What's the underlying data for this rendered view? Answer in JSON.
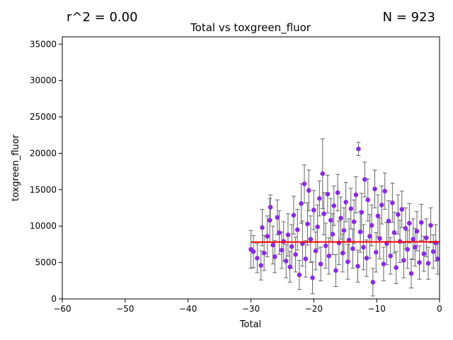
{
  "stats": {
    "r2_label": "r^2 = 0.00",
    "n_label": "N = 923"
  },
  "chart_data": {
    "type": "scatter",
    "title": "Total vs toxgreen_fluor",
    "xlabel": "Total",
    "ylabel": "toxgreen_fluor",
    "xlim": [
      -60,
      0
    ],
    "ylim": [
      0,
      36000
    ],
    "xticks": [
      -60,
      -50,
      -40,
      -30,
      -20,
      -10,
      0
    ],
    "yticks": [
      0,
      5000,
      10000,
      15000,
      20000,
      25000,
      30000,
      35000
    ],
    "xtick_labels": [
      "−60",
      "−50",
      "−40",
      "−30",
      "−20",
      "−10",
      "0"
    ],
    "ytick_labels": [
      "0",
      "5000",
      "10000",
      "15000",
      "20000",
      "25000",
      "30000",
      "35000"
    ],
    "grid": false,
    "fit_line": {
      "x": [
        -30,
        0
      ],
      "y": [
        7800,
        7850
      ],
      "color": "#ff0000"
    },
    "marker_color": "#8a2be2",
    "errorbar_color": "#666666",
    "series": [
      {
        "points": [
          [
            -30.0,
            6800,
            2600
          ],
          [
            -29.6,
            6500,
            2200
          ],
          [
            -29.0,
            5600,
            2000
          ],
          [
            -28.4,
            4600,
            2000
          ],
          [
            -28.2,
            9800,
            2500
          ],
          [
            -27.9,
            6300,
            2400
          ],
          [
            -27.4,
            8600,
            2800
          ],
          [
            -27.0,
            10800,
            3000
          ],
          [
            -26.9,
            12600,
            1700
          ],
          [
            -26.5,
            7400,
            2600
          ],
          [
            -26.2,
            5800,
            2200
          ],
          [
            -25.8,
            11200,
            2400
          ],
          [
            -25.5,
            9100,
            3000
          ],
          [
            -25.1,
            6700,
            2500
          ],
          [
            -24.8,
            7900,
            2700
          ],
          [
            -24.4,
            5200,
            2300
          ],
          [
            -24.1,
            8800,
            2900
          ],
          [
            -23.8,
            4400,
            2100
          ],
          [
            -23.5,
            7200,
            3000
          ],
          [
            -23.2,
            11500,
            2600
          ],
          [
            -22.9,
            6100,
            2400
          ],
          [
            -22.6,
            9500,
            2800
          ],
          [
            -22.3,
            3300,
            2000
          ],
          [
            -22.0,
            13100,
            2700
          ],
          [
            -21.8,
            7600,
            3100
          ],
          [
            -21.5,
            15800,
            2600
          ],
          [
            -21.3,
            5500,
            2500
          ],
          [
            -21.0,
            10300,
            2900
          ],
          [
            -20.8,
            14900,
            2800
          ],
          [
            -20.5,
            8200,
            3200
          ],
          [
            -20.2,
            2900,
            2200
          ],
          [
            -20.0,
            12200,
            2700
          ],
          [
            -19.7,
            6600,
            2600
          ],
          [
            -19.4,
            9900,
            3000
          ],
          [
            -19.1,
            13800,
            2400
          ],
          [
            -18.9,
            4800,
            2300
          ],
          [
            -18.6,
            17200,
            4800
          ],
          [
            -18.4,
            11700,
            2900
          ],
          [
            -18.1,
            7300,
            3100
          ],
          [
            -17.8,
            14400,
            2600
          ],
          [
            -17.6,
            5900,
            2500
          ],
          [
            -17.3,
            10800,
            3000
          ],
          [
            -17.0,
            8900,
            2800
          ],
          [
            -16.8,
            12800,
            2700
          ],
          [
            -16.5,
            3900,
            2200
          ],
          [
            -16.2,
            14600,
            2500
          ],
          [
            -16.0,
            7700,
            3000
          ],
          [
            -15.7,
            11100,
            2900
          ],
          [
            -15.4,
            6300,
            2600
          ],
          [
            -15.2,
            9400,
            3100
          ],
          [
            -14.9,
            13300,
            2700
          ],
          [
            -14.6,
            5100,
            2400
          ],
          [
            -14.4,
            8100,
            2900
          ],
          [
            -14.1,
            12400,
            2800
          ],
          [
            -13.8,
            6900,
            2700
          ],
          [
            -13.6,
            10600,
            3000
          ],
          [
            -13.3,
            14300,
            2500
          ],
          [
            -13.0,
            4500,
            2200
          ],
          [
            -12.9,
            20600,
            900
          ],
          [
            -12.6,
            9200,
            2800
          ],
          [
            -12.4,
            11900,
            2600
          ],
          [
            -12.1,
            7100,
            3100
          ],
          [
            -11.9,
            16400,
            2400
          ],
          [
            -11.6,
            5600,
            2500
          ],
          [
            -11.4,
            13600,
            2900
          ],
          [
            -11.1,
            8600,
            3000
          ],
          [
            -10.8,
            10100,
            2800
          ],
          [
            -10.6,
            2300,
            1900
          ],
          [
            -10.3,
            15100,
            2600
          ],
          [
            -10.1,
            6400,
            2700
          ],
          [
            -9.8,
            11400,
            2900
          ],
          [
            -9.5,
            8300,
            2800
          ],
          [
            -9.2,
            12900,
            2600
          ],
          [
            -8.9,
            4800,
            2300
          ],
          [
            -8.7,
            14800,
            2500
          ],
          [
            -8.4,
            7600,
            2900
          ],
          [
            -8.1,
            10700,
            2800
          ],
          [
            -7.8,
            5900,
            2500
          ],
          [
            -7.5,
            13200,
            2700
          ],
          [
            -7.2,
            9100,
            2800
          ],
          [
            -6.9,
            4300,
            2200
          ],
          [
            -6.6,
            11600,
            2700
          ],
          [
            -6.3,
            7900,
            2900
          ],
          [
            -6.0,
            12300,
            2500
          ],
          [
            -5.7,
            5300,
            2400
          ],
          [
            -5.4,
            9700,
            2800
          ],
          [
            -5.1,
            6800,
            2600
          ],
          [
            -4.8,
            10400,
            2700
          ],
          [
            -4.5,
            3500,
            2000
          ],
          [
            -4.2,
            8200,
            2800
          ],
          [
            -3.9,
            7100,
            2600
          ],
          [
            -3.6,
            9300,
            2700
          ],
          [
            -3.2,
            5000,
            2300
          ],
          [
            -2.9,
            10500,
            2500
          ],
          [
            -2.5,
            6200,
            2400
          ],
          [
            -2.1,
            8400,
            2600
          ],
          [
            -1.8,
            4900,
            2200
          ],
          [
            -1.4,
            10100,
            2400
          ],
          [
            -1.0,
            6500,
            2300
          ],
          [
            -0.6,
            7700,
            2500
          ],
          [
            -0.3,
            5500,
            2100
          ]
        ]
      }
    ]
  }
}
